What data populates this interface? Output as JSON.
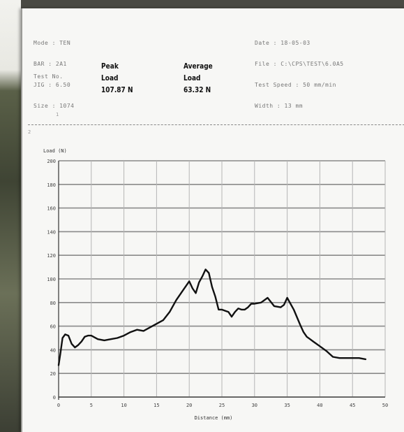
{
  "header": {
    "left_meta": [
      "Mode : TEN",
      "BAR : 2A1",
      "JIG : 6.50",
      "Size : 1074"
    ],
    "test_no_label": "Test No.",
    "peak_label_1": "Peak",
    "peak_label_2": "Load",
    "peak_value": "107.87 N",
    "avg_label_1": "Average",
    "avg_label_2": "Load",
    "avg_value": "63.32 N",
    "right_meta": [
      "Date : 18-05-03",
      "File : C:\\CPS\\TEST\\6.0A5",
      "Test Speed : 50 mm/min",
      "Width : 13 mm"
    ],
    "marker_1": "1",
    "marker_2": "2"
  },
  "chart_data": {
    "type": "line",
    "title": "",
    "ylabel": "Load (N)",
    "xlabel": "Distance (mm)",
    "xlim": [
      0,
      50
    ],
    "ylim": [
      0,
      200
    ],
    "x_ticks": [
      "0",
      "5",
      "10",
      "15",
      "20",
      "25",
      "30",
      "35",
      "40",
      "45",
      "50"
    ],
    "y_ticks": [
      "0",
      "20",
      "40",
      "60",
      "80",
      "100",
      "120",
      "140",
      "160",
      "180",
      "200"
    ],
    "grid": true,
    "series": [
      {
        "color": "#111111",
        "x": [
          0,
          0.3,
          0.6,
          1,
          1.5,
          2,
          2.5,
          3,
          3.5,
          4,
          4.5,
          5,
          6,
          7,
          8,
          9,
          10,
          11,
          12,
          13,
          14,
          15,
          16,
          17,
          18,
          19,
          20,
          20.5,
          21,
          21.5,
          22,
          22.5,
          23,
          23.5,
          24,
          24.5,
          25,
          25.5,
          26,
          26.5,
          27,
          27.5,
          28,
          28.5,
          29,
          29.5,
          30,
          31,
          32,
          33,
          34,
          34.5,
          35,
          36,
          37,
          37.5,
          38,
          38.5,
          39,
          40,
          41,
          42,
          43,
          44,
          45,
          46,
          47
        ],
        "y": [
          27,
          38,
          50,
          53,
          52,
          45,
          42,
          44,
          47,
          51,
          52,
          52,
          49,
          48,
          49,
          50,
          52,
          55,
          57,
          56,
          59,
          62,
          65,
          72,
          82,
          90,
          98,
          92,
          88,
          97,
          102,
          108,
          105,
          93,
          85,
          74,
          74,
          73,
          72,
          68,
          72,
          75,
          74,
          74,
          76,
          79,
          79,
          80,
          84,
          77,
          76,
          78,
          84,
          74,
          61,
          55,
          51,
          49,
          47,
          43,
          39,
          34,
          33,
          33,
          33,
          33,
          32
        ]
      }
    ]
  }
}
